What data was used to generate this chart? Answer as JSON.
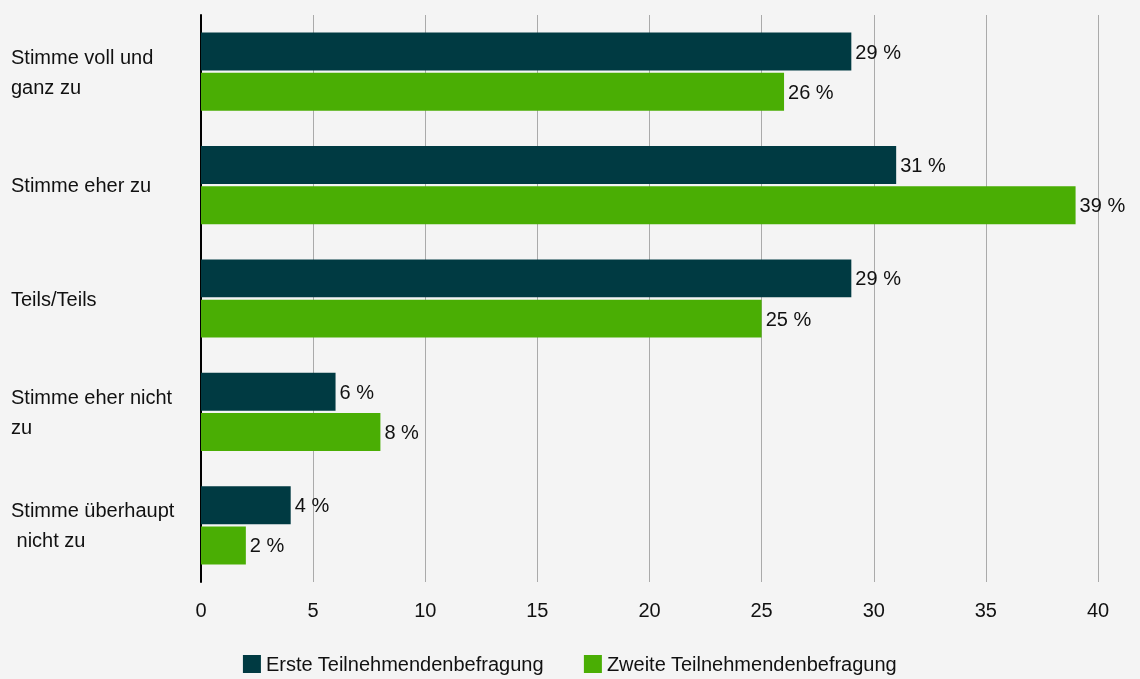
{
  "chart_data": {
    "type": "bar",
    "orientation": "horizontal",
    "categories": [
      "Stimme voll und ganz zu",
      "Stimme eher zu",
      "Teils/Teils",
      "Stimme eher nicht zu",
      "Stimme überhaupt nicht zu"
    ],
    "series": [
      {
        "name": "Erste Teilnehmendenbefragung",
        "color": "#003a42",
        "values": [
          29,
          31,
          29,
          6,
          4
        ],
        "value_labels": [
          "29 %",
          "31 %",
          "29 %",
          "6 %",
          "4 %"
        ]
      },
      {
        "name": "Zweite Teilnehmendenbefragung",
        "color": "#4aae04",
        "values": [
          26,
          39,
          25,
          8,
          2
        ],
        "value_labels": [
          "26 %",
          "39 %",
          "25 %",
          "8 %",
          "2 %"
        ]
      }
    ],
    "xlim": [
      0,
      40
    ],
    "xticks": [
      0,
      5,
      10,
      15,
      20,
      25,
      30,
      35,
      40
    ],
    "grid": "x",
    "legend": "bottom"
  }
}
